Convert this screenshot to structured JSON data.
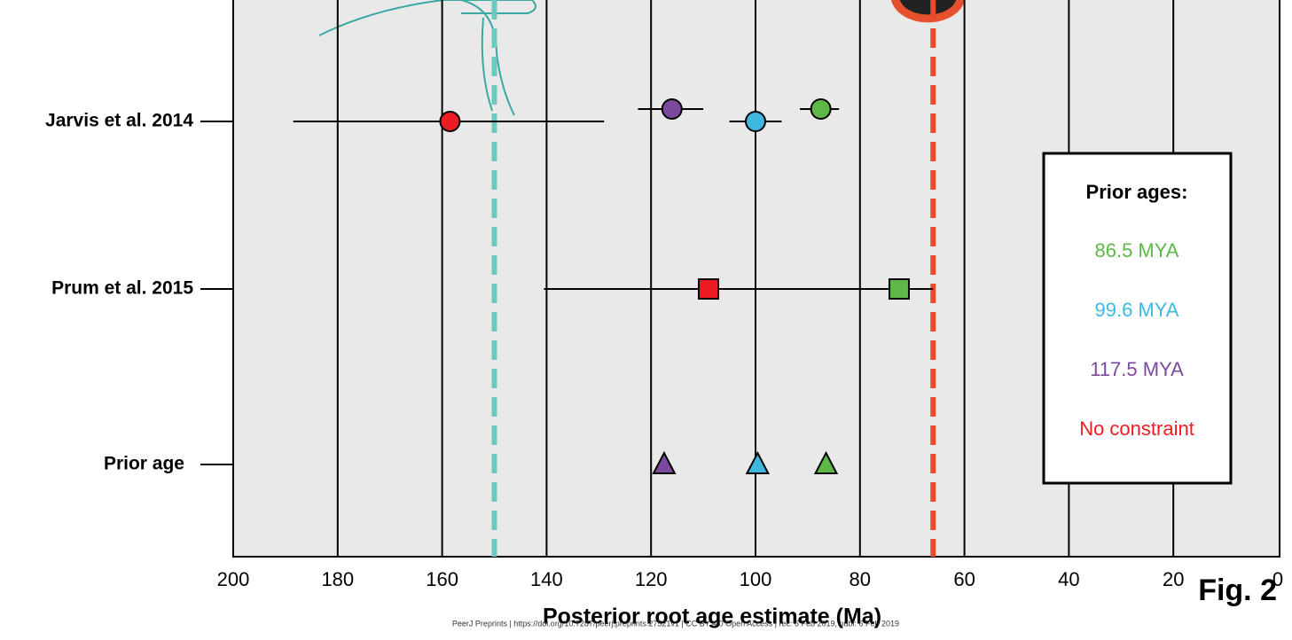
{
  "chart_data": {
    "type": "scatter",
    "categories": [
      "Jarvis et al. 2014",
      "Prum et al. 2015",
      "Prior age"
    ],
    "markers": [
      "circle",
      "square",
      "triangle"
    ],
    "xlabel": "Posterior root age estimate (Ma)",
    "xlim": [
      200,
      0
    ],
    "xticks": [
      200,
      180,
      160,
      140,
      120,
      100,
      80,
      60,
      40,
      20,
      0
    ],
    "grid": true,
    "legend_title": "Prior ages:",
    "series": [
      {
        "name": "86.5 MYA",
        "color": "#5db848",
        "values": [
          87.5,
          72.5,
          86.5
        ],
        "x_low": [
          91.5,
          78.5,
          null
        ],
        "x_high": [
          84,
          66,
          null
        ]
      },
      {
        "name": "99.6 MYA",
        "color": "#3fb8e0",
        "values": [
          100,
          null,
          99.6
        ],
        "x_low": [
          105,
          null,
          null
        ],
        "x_high": [
          95,
          null,
          null
        ]
      },
      {
        "name": "117.5 MYA",
        "color": "#7b4a9c",
        "values": [
          116,
          null,
          117.5
        ],
        "x_low": [
          122.5,
          null,
          null
        ],
        "x_high": [
          110,
          null,
          null
        ]
      },
      {
        "name": "No constraint",
        "color": "#ed1c24",
        "values": [
          158.5,
          109,
          null
        ],
        "x_low": [
          188.5,
          140.5,
          null
        ],
        "x_high": [
          129,
          77,
          null
        ]
      }
    ],
    "reference_lines": [
      {
        "value": 150,
        "color": "#6cc9c0"
      },
      {
        "value": 66,
        "color": "#ec4b2a"
      }
    ],
    "figure_label": "Fig. 2",
    "footer": "PeerJ Preprints | https://doi.org/10.7287/peerj.preprints.27521v1 | CC BY 4.0 Open Access | rec: 6 Feb 2019, publ: 6 Feb 2019"
  }
}
